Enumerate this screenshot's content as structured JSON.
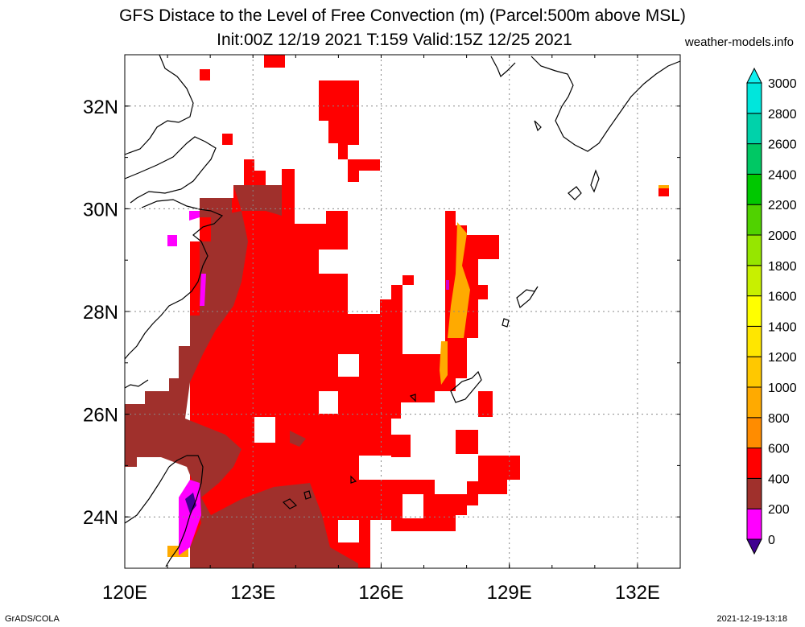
{
  "title": {
    "line1": "GFS Distace to the Level of Free Convection (m) (Parcel:500m above MSL)",
    "line2": "Init:00Z 12/19 2021 T:159 Valid:15Z 12/25 2021",
    "site": "weather-models.info"
  },
  "axes": {
    "lon_labels": [
      "120E",
      "123E",
      "126E",
      "129E",
      "132E"
    ],
    "lat_labels": [
      "32N",
      "30N",
      "28N",
      "26N",
      "24N"
    ],
    "lon_range": [
      120,
      133
    ],
    "lat_range": [
      23,
      33
    ]
  },
  "colorbar": {
    "levels": [
      "0",
      "200",
      "400",
      "600",
      "800",
      "1000",
      "1200",
      "1400",
      "1600",
      "1800",
      "2000",
      "2200",
      "2400",
      "2600",
      "2800",
      "3000"
    ],
    "colors": [
      "#400090",
      "#ff00ff",
      "#a0302c",
      "#ff0000",
      "#ff8c00",
      "#ffaa00",
      "#ffc800",
      "#ffe600",
      "#ffff00",
      "#c8f000",
      "#96e600",
      "#50d200",
      "#00c800",
      "#00c864",
      "#00d2aa",
      "#00e6dc",
      "#10f0f0"
    ]
  },
  "footer": {
    "left": "GrADS/COLA",
    "right": "2021-12-19-13:18"
  }
}
